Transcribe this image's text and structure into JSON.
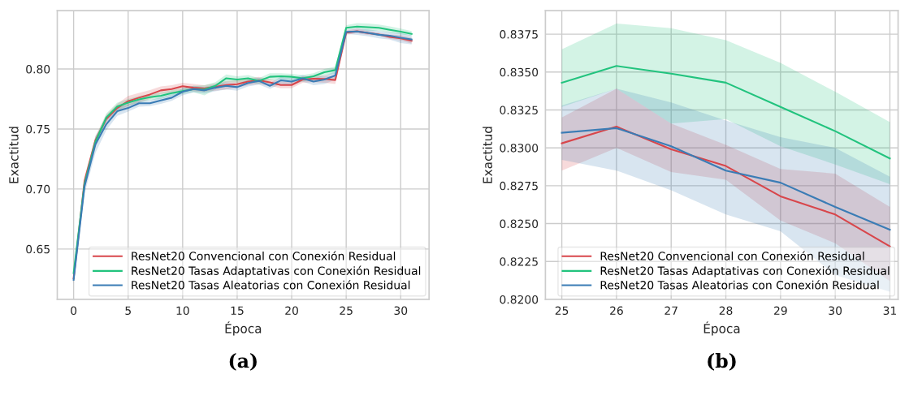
{
  "chart_data": [
    {
      "type": "line",
      "xlabel": "Época",
      "ylabel": "Exactitud",
      "annotations": [
        "(a)"
      ],
      "grid": true,
      "legend": "bottom right",
      "xlim": [
        -1.5,
        32.6
      ],
      "ylim": [
        0.608,
        0.8486
      ],
      "xticks": [
        0,
        5,
        10,
        15,
        20,
        25,
        30
      ],
      "yticks": [
        {
          "value": 0.65,
          "label": "0.65"
        },
        {
          "value": 0.7,
          "label": "0.70"
        },
        {
          "value": 0.75,
          "label": "0.75"
        },
        {
          "value": 0.8,
          "label": "0.80"
        }
      ],
      "x": [
        0,
        1,
        2,
        3,
        4,
        5,
        6,
        7,
        8,
        9,
        10,
        11,
        12,
        13,
        14,
        15,
        16,
        17,
        18,
        19,
        20,
        21,
        22,
        23,
        24,
        25,
        26,
        27,
        28,
        29,
        30,
        31
      ],
      "series": [
        {
          "name": "ResNet20 Convencional con Conexión Residual",
          "color": "#d8464b",
          "values": [
            0.6254,
            0.7066,
            0.7405,
            0.7585,
            0.7675,
            0.7732,
            0.7761,
            0.7788,
            0.7822,
            0.7833,
            0.7856,
            0.7844,
            0.7838,
            0.7851,
            0.7867,
            0.7874,
            0.7896,
            0.7905,
            0.7889,
            0.7867,
            0.7867,
            0.7912,
            0.7919,
            0.7917,
            0.7908,
            0.8303,
            0.8314,
            0.8299,
            0.8288,
            0.8268,
            0.8256,
            0.8235
          ],
          "lower": [
            0.622,
            0.703,
            0.737,
            0.755,
            0.764,
            0.769,
            0.772,
            0.775,
            0.779,
            0.78,
            0.7825,
            0.7815,
            0.781,
            0.782,
            0.783,
            0.7845,
            0.7865,
            0.7875,
            0.786,
            0.784,
            0.784,
            0.7885,
            0.789,
            0.7885,
            0.7875,
            0.8285,
            0.83,
            0.8284,
            0.8279,
            0.8252,
            0.8237,
            0.8212
          ],
          "upper": [
            0.629,
            0.71,
            0.744,
            0.762,
            0.771,
            0.7775,
            0.78,
            0.7825,
            0.7855,
            0.7865,
            0.7885,
            0.7875,
            0.7865,
            0.788,
            0.79,
            0.7905,
            0.7925,
            0.7935,
            0.7915,
            0.7895,
            0.7895,
            0.794,
            0.7945,
            0.7945,
            0.794,
            0.832,
            0.8339,
            0.8316,
            0.8302,
            0.8286,
            0.8283,
            0.8261
          ]
        },
        {
          "name": "ResNet20 Tasas Adaptativas con Conexión Residual",
          "color": "#22c37e",
          "values": [
            0.6299,
            0.7044,
            0.7393,
            0.7596,
            0.7687,
            0.772,
            0.7747,
            0.7765,
            0.7777,
            0.7799,
            0.7815,
            0.7833,
            0.7829,
            0.786,
            0.7923,
            0.7912,
            0.7923,
            0.7901,
            0.7935,
            0.7939,
            0.7935,
            0.7923,
            0.7939,
            0.7973,
            0.7991,
            0.8343,
            0.8354,
            0.8349,
            0.8343,
            0.8327,
            0.8311,
            0.8293
          ],
          "lower": [
            0.6265,
            0.701,
            0.736,
            0.7565,
            0.7655,
            0.769,
            0.772,
            0.774,
            0.775,
            0.7775,
            0.779,
            0.7805,
            0.778,
            0.783,
            0.789,
            0.7885,
            0.7895,
            0.7875,
            0.7905,
            0.791,
            0.7905,
            0.7895,
            0.791,
            0.7945,
            0.796,
            0.8327,
            0.8339,
            0.8316,
            0.8319,
            0.8301,
            0.8289,
            0.8276
          ],
          "upper": [
            0.6335,
            0.708,
            0.743,
            0.763,
            0.772,
            0.775,
            0.7775,
            0.779,
            0.7805,
            0.7825,
            0.784,
            0.786,
            0.7865,
            0.789,
            0.7955,
            0.794,
            0.795,
            0.7925,
            0.7965,
            0.7965,
            0.796,
            0.795,
            0.7965,
            0.8,
            0.802,
            0.8365,
            0.8382,
            0.8379,
            0.8371,
            0.8356,
            0.8337,
            0.8317
          ]
        },
        {
          "name": "ResNet20 Tasas Aleatorias con Conexión Residual",
          "color": "#3a7cb5",
          "values": [
            0.6243,
            0.7021,
            0.7371,
            0.754,
            0.7648,
            0.7675,
            0.7714,
            0.7714,
            0.7738,
            0.7761,
            0.7811,
            0.7833,
            0.7822,
            0.7844,
            0.786,
            0.7849,
            0.7883,
            0.7901,
            0.786,
            0.7905,
            0.7896,
            0.7923,
            0.7896,
            0.7912,
            0.7946,
            0.831,
            0.8313,
            0.8301,
            0.8285,
            0.8277,
            0.8261,
            0.8246
          ],
          "lower": [
            0.621,
            0.696,
            0.73,
            0.749,
            0.761,
            0.7645,
            0.7685,
            0.769,
            0.771,
            0.7735,
            0.778,
            0.7805,
            0.7795,
            0.7815,
            0.783,
            0.782,
            0.7855,
            0.787,
            0.7835,
            0.7875,
            0.7865,
            0.7895,
            0.7865,
            0.7875,
            0.791,
            0.8292,
            0.8285,
            0.8272,
            0.8256,
            0.8245,
            0.8216,
            0.8205
          ],
          "upper": [
            0.6275,
            0.708,
            0.744,
            0.759,
            0.7685,
            0.7705,
            0.774,
            0.774,
            0.7765,
            0.779,
            0.784,
            0.786,
            0.785,
            0.787,
            0.789,
            0.7878,
            0.791,
            0.793,
            0.7885,
            0.7935,
            0.7925,
            0.795,
            0.7925,
            0.7945,
            0.798,
            0.8328,
            0.8339,
            0.833,
            0.8318,
            0.8307,
            0.83,
            0.8281
          ]
        }
      ]
    },
    {
      "type": "line",
      "xlabel": "Época",
      "ylabel": "Exactitud",
      "annotations": [
        "(b)"
      ],
      "grid": true,
      "legend": "bottom right",
      "xlim": [
        24.7,
        31.15
      ],
      "ylim": [
        0.82,
        0.83905
      ],
      "xticks": [
        25,
        26,
        27,
        28,
        29,
        30,
        31
      ],
      "yticks": [
        {
          "value": 0.82,
          "label": "0.8200"
        },
        0.8225,
        {
          "value": 0.825,
          "label": "0.8250"
        },
        0.8275,
        {
          "value": 0.83,
          "label": "0.8300"
        },
        0.8325,
        {
          "value": 0.835,
          "label": "0.8350"
        },
        0.8375
      ],
      "x": [
        25,
        26,
        27,
        28,
        29,
        30,
        31
      ],
      "series": [
        {
          "name": "ResNet20 Convencional con Conexión Residual",
          "color": "#d8464b",
          "values": [
            0.8303,
            0.8314,
            0.8299,
            0.8288,
            0.8268,
            0.8256,
            0.8235
          ],
          "lower": [
            0.8285,
            0.83,
            0.8284,
            0.8279,
            0.8252,
            0.8237,
            0.8212
          ],
          "upper": [
            0.832,
            0.8339,
            0.8316,
            0.8302,
            0.8286,
            0.8283,
            0.8261
          ]
        },
        {
          "name": "ResNet20 Tasas Adaptativas con Conexión Residual",
          "color": "#22c37e",
          "values": [
            0.8343,
            0.8354,
            0.8349,
            0.8343,
            0.8327,
            0.8311,
            0.8293
          ],
          "lower": [
            0.8327,
            0.8339,
            0.8316,
            0.8319,
            0.8301,
            0.8289,
            0.8276
          ],
          "upper": [
            0.8365,
            0.8382,
            0.8379,
            0.8371,
            0.8356,
            0.8337,
            0.8317
          ]
        },
        {
          "name": "ResNet20 Tasas Aleatorias con Conexión Residual",
          "color": "#3a7cb5",
          "values": [
            0.831,
            0.8313,
            0.8301,
            0.8285,
            0.8277,
            0.8261,
            0.8246
          ],
          "lower": [
            0.8292,
            0.8285,
            0.8272,
            0.8256,
            0.8245,
            0.8216,
            0.8205
          ],
          "upper": [
            0.8328,
            0.8339,
            0.833,
            0.8318,
            0.8307,
            0.83,
            0.8281
          ]
        }
      ]
    }
  ]
}
